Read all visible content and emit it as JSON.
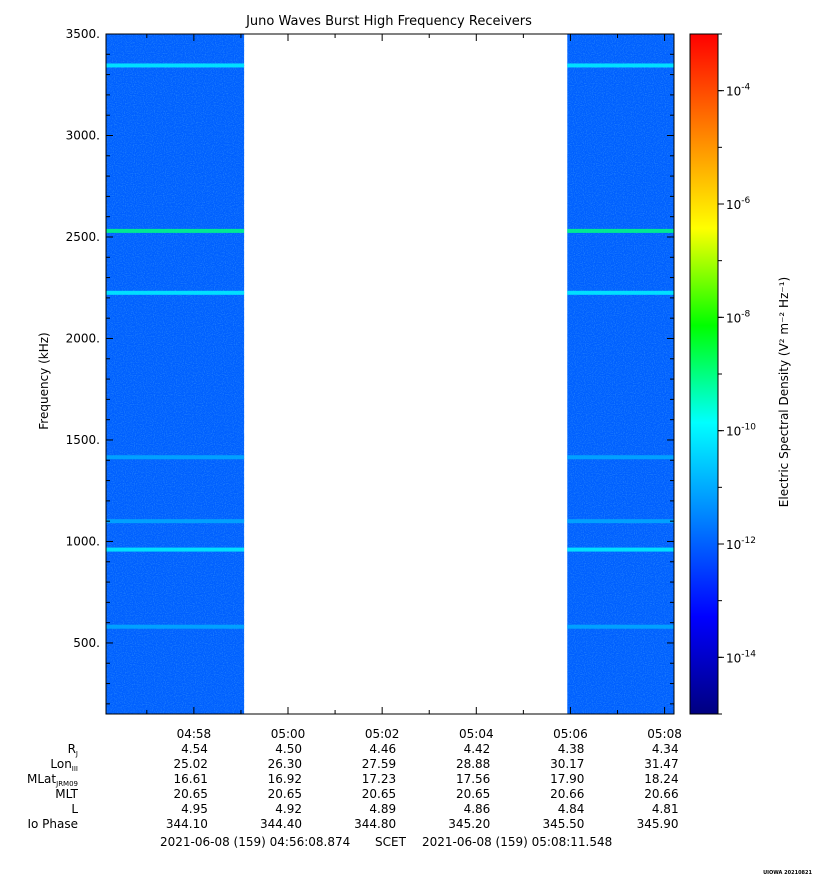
{
  "chart_data": {
    "type": "heatmap",
    "title": "Juno Waves Burst High Frequency Receivers",
    "ylabel": "Frequency (kHz)",
    "ylim": [
      150,
      3500
    ],
    "y_ticks": [
      "500.",
      "1000.",
      "1500.",
      "2000.",
      "2500.",
      "3000.",
      "3500."
    ],
    "y_tick_values": [
      500,
      1000,
      1500,
      2000,
      2500,
      3000,
      3500
    ],
    "x_range_minutes": [
      296.1333,
      308.2
    ],
    "x_ticks": [
      "04:58",
      "05:00",
      "05:02",
      "05:04",
      "05:06",
      "05:08"
    ],
    "x_tick_minutes": [
      298,
      300,
      302,
      304,
      306,
      308
    ],
    "data_intervals_minutes": [
      [
        296.1333,
        299.0667
      ],
      [
        305.9333,
        308.2
      ]
    ],
    "background_level": "1e-12",
    "emission_lines": [
      {
        "freq_khz": 3345,
        "level": "1e-10"
      },
      {
        "freq_khz": 2530,
        "level": "1e-9"
      },
      {
        "freq_khz": 2225,
        "level": "1e-10"
      },
      {
        "freq_khz": 1415,
        "level": "1e-11"
      },
      {
        "freq_khz": 1100,
        "level": "1e-11"
      },
      {
        "freq_khz": 960,
        "level": "1e-10"
      },
      {
        "freq_khz": 580,
        "level": "1e-11"
      }
    ],
    "colorbar": {
      "label": "Electric Spectral Density (V² m⁻² Hz⁻¹)",
      "scale": "log",
      "range": [
        "1e-15",
        "1e-3"
      ],
      "tick_labels": [
        {
          "exp": "-4",
          "value": "1e-4"
        },
        {
          "exp": "-6",
          "value": "1e-6"
        },
        {
          "exp": "-8",
          "value": "1e-8"
        },
        {
          "exp": "-10",
          "value": "1e-10"
        },
        {
          "exp": "-12",
          "value": "1e-12"
        },
        {
          "exp": "-14",
          "value": "1e-14"
        }
      ],
      "colors": [
        "#000080",
        "#0000ff",
        "#0080ff",
        "#00ffff",
        "#00ff00",
        "#ffff00",
        "#ff8000",
        "#ff0000"
      ]
    },
    "ephemeris": {
      "rows": [
        {
          "label": "R",
          "sub": "J",
          "values": [
            "4.54",
            "4.50",
            "4.46",
            "4.42",
            "4.38",
            "4.34"
          ]
        },
        {
          "label": "Lon",
          "sub": "III",
          "values": [
            "25.02",
            "26.30",
            "27.59",
            "28.88",
            "30.17",
            "31.47"
          ]
        },
        {
          "label": "MLat",
          "sub": "JRM09",
          "values": [
            "16.61",
            "16.92",
            "17.23",
            "17.56",
            "17.90",
            "18.24"
          ]
        },
        {
          "label": "MLT",
          "sub": "",
          "values": [
            "20.65",
            "20.65",
            "20.65",
            "20.65",
            "20.66",
            "20.66"
          ]
        },
        {
          "label": "L",
          "sub": "",
          "values": [
            "4.95",
            "4.92",
            "4.89",
            "4.86",
            "4.84",
            "4.81"
          ]
        },
        {
          "label": "Io Phase",
          "sub": "",
          "values": [
            "344.10",
            "344.40",
            "344.80",
            "345.20",
            "345.50",
            "345.90"
          ]
        }
      ]
    },
    "time_span": {
      "start": "2021-06-08 (159) 04:56:08.874",
      "frame": "SCET",
      "end": "2021-06-08 (159) 05:08:11.548"
    },
    "credit": "UIOWA 20210821"
  }
}
